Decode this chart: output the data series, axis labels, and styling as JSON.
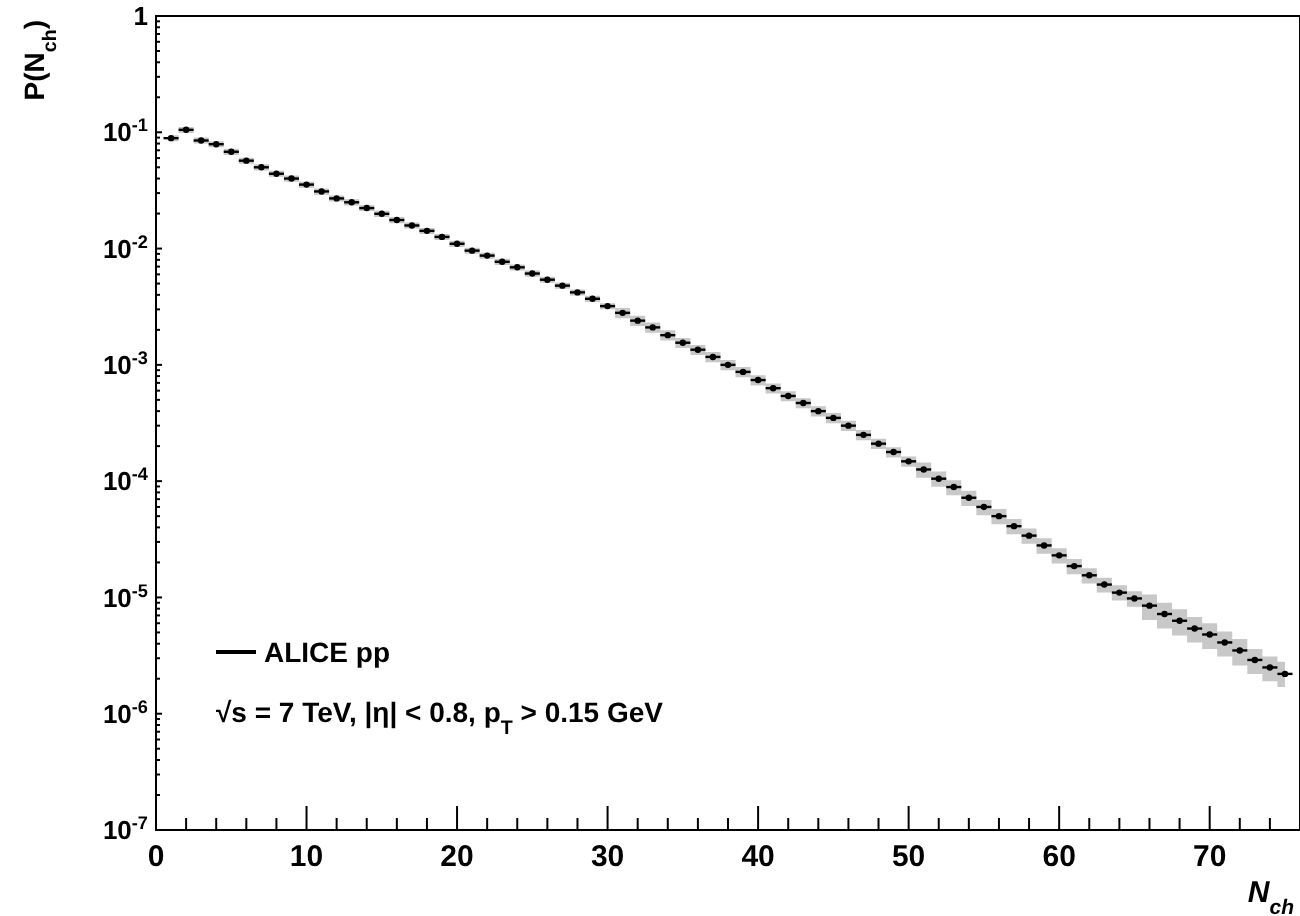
{
  "chart_data": {
    "type": "scatter",
    "xlabel": "N$_{ch}$",
    "ylabel": "P(N$_{ch}$)",
    "log": "y",
    "xlim": [
      0,
      76
    ],
    "xticks": [
      0,
      10,
      20,
      30,
      40,
      50,
      60,
      70
    ],
    "ylim": [
      1e-07,
      1
    ],
    "yticks": [
      {
        "value": 1e-07,
        "label": "10$^{-7}$"
      },
      {
        "value": 1e-06,
        "label": "10$^{-6}$"
      },
      {
        "value": 1e-05,
        "label": "10$^{-5}$"
      },
      {
        "value": 0.0001,
        "label": "10$^{-4}$"
      },
      {
        "value": 0.001,
        "label": "10$^{-3}$"
      },
      {
        "value": 0.01,
        "label": "10$^{-2}$"
      },
      {
        "value": 0.1,
        "label": "10$^{-1}$"
      },
      1
    ],
    "x": [
      1,
      2,
      3,
      4,
      5,
      6,
      7,
      8,
      9,
      10,
      11,
      12,
      13,
      14,
      15,
      16,
      17,
      18,
      19,
      20,
      21,
      22,
      23,
      24,
      25,
      26,
      27,
      28,
      29,
      30,
      31,
      32,
      33,
      34,
      35,
      36,
      37,
      38,
      39,
      40,
      41,
      42,
      43,
      44,
      45,
      46,
      47,
      48,
      49,
      50,
      51,
      52,
      53,
      54,
      55,
      56,
      57,
      58,
      59,
      60,
      61,
      62,
      63,
      64,
      65,
      66,
      67,
      68,
      69,
      70,
      71,
      72,
      73,
      74,
      75
    ],
    "series": [
      {
        "name": "ALICE pp",
        "color": "#000000",
        "values": [
          0.089,
          0.105,
          0.085,
          0.079,
          0.068,
          0.057,
          0.05,
          0.044,
          0.04,
          0.0355,
          0.031,
          0.027,
          0.025,
          0.0223,
          0.0199,
          0.0176,
          0.0158,
          0.0142,
          0.0126,
          0.011,
          0.0096,
          0.0087,
          0.0077,
          0.0069,
          0.0061,
          0.0054,
          0.0048,
          0.0042,
          0.0037,
          0.0032,
          0.0028,
          0.0024,
          0.0021,
          0.0018,
          0.00155,
          0.00135,
          0.00117,
          0.001,
          0.00087,
          0.00074,
          0.00063,
          0.00054,
          0.00047,
          0.0004,
          0.00035,
          0.0003,
          0.00025,
          0.00021,
          0.000178,
          0.000148,
          0.000126,
          0.000105,
          8.9e-05,
          7.2e-05,
          6e-05,
          5e-05,
          4.1e-05,
          3.4e-05,
          2.8e-05,
          2.3e-05,
          1.86e-05,
          1.55e-05,
          1.29e-05,
          1.1e-05,
          9.8e-06,
          8.5e-06,
          7.2e-06,
          6.3e-06,
          5.4e-06,
          4.8e-06,
          4.1e-06,
          3.5e-06,
          2.9e-06,
          2.5e-06,
          2.2e-06
        ],
        "xerrors": [
          0.5,
          0.5,
          0.5,
          0.5,
          0.5,
          0.5,
          0.5,
          0.5,
          0.5,
          0.5,
          0.5,
          0.5,
          0.5,
          0.5,
          0.5,
          0.5,
          0.5,
          0.5,
          0.5,
          0.5,
          0.5,
          0.5,
          0.5,
          0.5,
          0.5,
          0.5,
          0.5,
          0.5,
          0.5,
          0.5,
          0.5,
          0.5,
          0.5,
          0.5,
          0.5,
          0.5,
          0.5,
          0.5,
          0.5,
          0.5,
          0.5,
          0.5,
          0.5,
          0.5,
          0.5,
          0.5,
          0.5,
          0.5,
          0.5,
          0.5,
          0.5,
          0.5,
          0.5,
          0.5,
          0.5,
          0.5,
          0.5,
          0.5,
          0.5,
          0.5,
          0.5,
          0.5,
          0.5,
          0.5,
          0.5,
          0.5,
          0.5,
          0.5,
          0.5,
          0.5,
          0.5,
          0.5,
          0.5,
          0.5,
          0.5
        ],
        "lower": [
          0.0837,
          0.0987,
          0.0799,
          0.0743,
          0.0639,
          0.0536,
          0.047,
          0.0414,
          0.0376,
          0.0334,
          0.0291,
          0.0254,
          0.0235,
          0.021,
          0.0187,
          0.0165,
          0.01485,
          0.01335,
          0.01184,
          0.01034,
          0.00902,
          0.00818,
          0.00724,
          0.00649,
          0.00573,
          0.00508,
          0.00451,
          0.00395,
          0.00348,
          0.00301,
          0.00252,
          0.00216,
          0.00189,
          0.00162,
          0.001395,
          0.001215,
          0.001053,
          0.0009,
          0.000783,
          0.000666,
          0.000567,
          0.000486,
          0.000423,
          0.00036,
          0.000315,
          0.00027,
          0.000225,
          0.000189,
          0.00016,
          0.000133,
          0.000107,
          8.93e-05,
          7.57e-05,
          6.12e-05,
          5.1e-05,
          4.25e-05,
          3.49e-05,
          2.89e-05,
          2.38e-05,
          1.96e-05,
          1.58e-05,
          1.32e-05,
          1.1e-05,
          9.4e-06,
          8.3e-06,
          6.4e-06,
          5.4e-06,
          4.7e-06,
          4.1e-06,
          3.6e-06,
          3.1e-06,
          2.6e-06,
          2.2e-06,
          1.9e-06,
          1.7e-06
        ],
        "upper": [
          0.0943,
          0.1113,
          0.0901,
          0.0837,
          0.0721,
          0.0604,
          0.053,
          0.0466,
          0.0424,
          0.0376,
          0.0329,
          0.0286,
          0.0265,
          0.0236,
          0.0211,
          0.0187,
          0.01675,
          0.01505,
          0.01336,
          0.01166,
          0.01018,
          0.00922,
          0.00816,
          0.00731,
          0.00647,
          0.00572,
          0.00509,
          0.00445,
          0.00392,
          0.00339,
          0.00308,
          0.00264,
          0.00231,
          0.00198,
          0.001705,
          0.001485,
          0.001287,
          0.0011,
          0.000957,
          0.000814,
          0.000693,
          0.000594,
          0.000517,
          0.00044,
          0.000385,
          0.00033,
          0.000275,
          0.000231,
          0.000196,
          0.000163,
          0.000145,
          0.000121,
          0.000102,
          8.28e-05,
          6.9e-05,
          5.75e-05,
          4.72e-05,
          3.91e-05,
          3.22e-05,
          2.65e-05,
          2.14e-05,
          1.78e-05,
          1.48e-05,
          1.27e-05,
          1.13e-05,
          1.06e-05,
          9e-06,
          7.9e-06,
          6.8e-06,
          6e-06,
          5.1e-06,
          4.4e-06,
          3.6e-06,
          3.1e-06,
          2.8e-06
        ]
      }
    ],
    "legend": "bottom left",
    "annotations": [
      "√s = 7 TeV, |η| < 0.8, p$_{T}$ > 0.15 GeV"
    ]
  }
}
